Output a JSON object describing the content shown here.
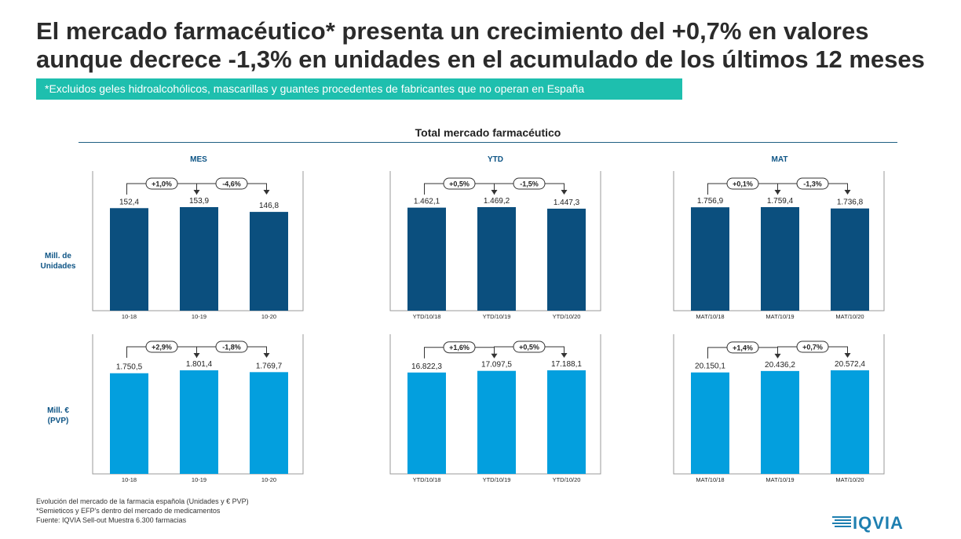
{
  "title": {
    "line1": "El mercado farmacéutico* presenta un crecimiento del +0,7% en valores",
    "line2": "aunque decrece -1,3% en unidades en el acumulado de los últimos 12 meses"
  },
  "note": "*Excluidos geles hidroalcohólicos, mascarillas y guantes procedentes de fabricantes que no operan en España",
  "section_title": "Total mercado farmacéutico",
  "row_labels": {
    "units": [
      "Mill. de",
      "Unidades"
    ],
    "value": [
      "Mill. €",
      "(PVP)"
    ]
  },
  "footer": [
    "Evolución del mercado de la farmacia española (Unidades y € PVP)",
    "*Semieticos y EFP's dentro del mercado de medicamentos",
    "Fuente: IQVIA Sell-out Muestra 6.300 farmacias"
  ],
  "logo_text": "IQVIA",
  "colors": {
    "units_bar": "#0b4f7e",
    "value_bar": "#039fde",
    "accent": "#1ebfae",
    "axis": "#9a9a9a"
  },
  "chart_data": [
    {
      "type": "bar",
      "column": "MES",
      "row": "units",
      "categories": [
        "10-18",
        "10-19",
        "10-20"
      ],
      "values": [
        152.4,
        153.9,
        146.8
      ],
      "value_labels": [
        "152,4",
        "153,9",
        "146,8"
      ],
      "changes": [
        "+1,0%",
        "-4,6%"
      ]
    },
    {
      "type": "bar",
      "column": "YTD",
      "row": "units",
      "categories": [
        "YTD/10/18",
        "YTD/10/19",
        "YTD/10/20"
      ],
      "values": [
        1462.1,
        1469.2,
        1447.3
      ],
      "value_labels": [
        "1.462,1",
        "1.469,2",
        "1.447,3"
      ],
      "changes": [
        "+0,5%",
        "-1,5%"
      ]
    },
    {
      "type": "bar",
      "column": "MAT",
      "row": "units",
      "categories": [
        "MAT/10/18",
        "MAT/10/19",
        "MAT/10/20"
      ],
      "values": [
        1756.9,
        1759.4,
        1736.8
      ],
      "value_labels": [
        "1.756,9",
        "1.759,4",
        "1.736,8"
      ],
      "changes": [
        "+0,1%",
        "-1,3%"
      ]
    },
    {
      "type": "bar",
      "column": "MES",
      "row": "value",
      "categories": [
        "10-18",
        "10-19",
        "10-20"
      ],
      "values": [
        1750.5,
        1801.4,
        1769.7
      ],
      "value_labels": [
        "1.750,5",
        "1.801,4",
        "1.769,7"
      ],
      "changes": [
        "+2,9%",
        "-1,8%"
      ]
    },
    {
      "type": "bar",
      "column": "YTD",
      "row": "value",
      "categories": [
        "YTD/10/18",
        "YTD/10/19",
        "YTD/10/20"
      ],
      "values": [
        16822.3,
        17097.5,
        17188.1
      ],
      "value_labels": [
        "16.822,3",
        "17.097,5",
        "17.188,1"
      ],
      "changes": [
        "+1,6%",
        "+0,5%"
      ]
    },
    {
      "type": "bar",
      "column": "MAT",
      "row": "value",
      "categories": [
        "MAT/10/18",
        "MAT/10/19",
        "MAT/10/20"
      ],
      "values": [
        20150.1,
        20436.2,
        20572.4
      ],
      "value_labels": [
        "20.150,1",
        "20.436,2",
        "20.572,4"
      ],
      "changes": [
        "+1,4%",
        "+0,7%"
      ]
    }
  ]
}
